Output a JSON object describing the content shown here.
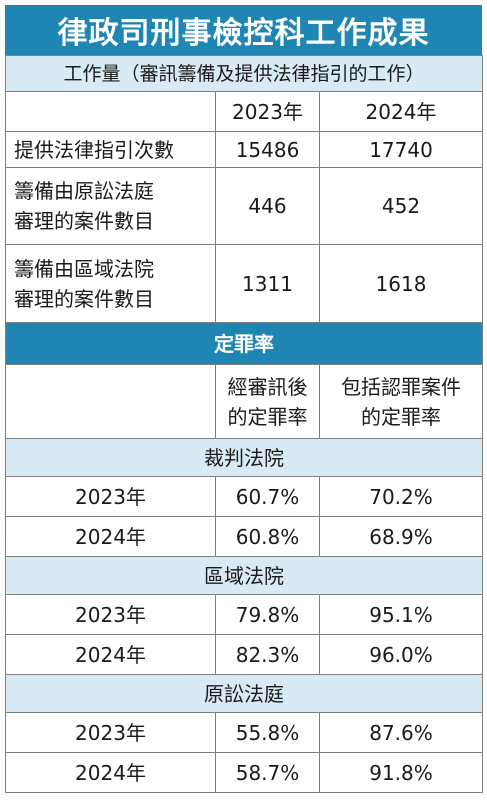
{
  "title": "律政司刑事檢控科工作成果",
  "workload": {
    "header": "工作量（審訊籌備及提供法律指引的工作）",
    "columns": [
      "2023年",
      "2024年"
    ],
    "rows": [
      {
        "label": [
          "提供法律指引次數"
        ],
        "values": [
          "15486",
          "17740"
        ]
      },
      {
        "label": [
          "籌備由原訟法庭",
          "審理的案件數目"
        ],
        "values": [
          "446",
          "452"
        ]
      },
      {
        "label": [
          "籌備由區域法院",
          "審理的案件數目"
        ],
        "values": [
          "1311",
          "1618"
        ]
      }
    ]
  },
  "conviction": {
    "header": "定罪率",
    "col1": [
      "經審訊後",
      "的定罪率"
    ],
    "col2": [
      "包括認罪案件",
      "的定罪率"
    ],
    "courts": [
      {
        "name": "裁判法院",
        "rows": [
          {
            "year": "2023年",
            "values": [
              "60.7%",
              "70.2%"
            ]
          },
          {
            "year": "2024年",
            "values": [
              "60.8%",
              "68.9%"
            ]
          }
        ]
      },
      {
        "name": "區域法院",
        "rows": [
          {
            "year": "2023年",
            "values": [
              "79.8%",
              "95.1%"
            ]
          },
          {
            "year": "2024年",
            "values": [
              "82.3%",
              "96.0%"
            ]
          }
        ]
      },
      {
        "name": "原訟法庭",
        "rows": [
          {
            "year": "2023年",
            "values": [
              "55.8%",
              "87.6%"
            ]
          },
          {
            "year": "2024年",
            "values": [
              "58.7%",
              "91.8%"
            ]
          }
        ]
      }
    ]
  },
  "colors": {
    "accent": "#1f86b3",
    "band": "#d8eaf4",
    "border": "#7f7f7f"
  }
}
